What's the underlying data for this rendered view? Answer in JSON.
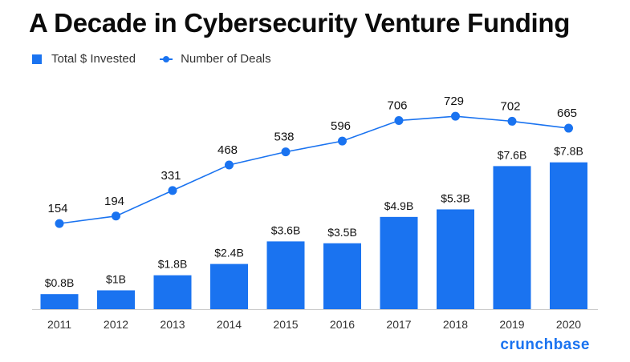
{
  "title": "A Decade in Cybersecurity Venture Funding",
  "legend": {
    "bar_label": "Total $ Invested",
    "line_label": "Number of Deals"
  },
  "brand": "crunchbase",
  "colors": {
    "accent": "#1a73f0",
    "text": "#111111",
    "axis": "#cccccc"
  },
  "chart_data": {
    "type": "bar",
    "categories": [
      "2011",
      "2012",
      "2013",
      "2014",
      "2015",
      "2016",
      "2017",
      "2018",
      "2019",
      "2020"
    ],
    "series": [
      {
        "name": "Total $ Invested",
        "type": "bar",
        "values": [
          0.8,
          1,
          1.8,
          2.4,
          3.6,
          3.5,
          4.9,
          5.3,
          7.6,
          7.8
        ],
        "labels": [
          "$0.8B",
          "$1B",
          "$1.8B",
          "$2.4B",
          "$3.6B",
          "$3.5B",
          "$4.9B",
          "$5.3B",
          "$7.6B",
          "$7.8B"
        ],
        "unit": "USD billions"
      },
      {
        "name": "Number of Deals",
        "type": "line",
        "values": [
          154,
          194,
          331,
          468,
          538,
          596,
          706,
          729,
          702,
          665
        ],
        "labels": [
          "154",
          "194",
          "331",
          "468",
          "538",
          "596",
          "706",
          "729",
          "702",
          "665"
        ]
      }
    ],
    "legend_position": "top-left",
    "grid": false
  }
}
